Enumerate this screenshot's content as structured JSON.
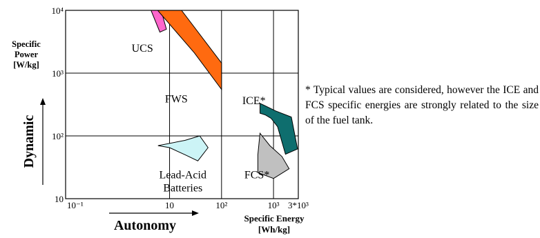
{
  "chart_data": {
    "type": "area",
    "x_scale": "log",
    "y_scale": "log",
    "xlim": [
      0.1,
      3000
    ],
    "ylim": [
      10,
      10000
    ],
    "grid": true,
    "x_ticks": [
      {
        "value": 0.1,
        "label": "10⁻¹"
      },
      {
        "value": 10,
        "label": "10"
      },
      {
        "value": 100,
        "label": "10²"
      },
      {
        "value": 1000,
        "label": "10³"
      },
      {
        "value": 3000,
        "label": "3*10³"
      }
    ],
    "y_ticks": [
      {
        "value": 10000,
        "label": "10⁴"
      },
      {
        "value": 1000,
        "label": "10³"
      },
      {
        "value": 100,
        "label": "10²"
      },
      {
        "value": 10,
        "label": "10"
      }
    ],
    "ylabel": [
      "Specific",
      "Power",
      "[W/kg]"
    ],
    "xlabel": [
      "Specific Energy",
      "[Wh/kg]"
    ],
    "y_arrow_label": "Dynamic",
    "x_arrow_label": "Autonomy",
    "series": [
      {
        "name": "UCS",
        "color": "#ff66cc",
        "polygon": [
          [
            4.4,
            10000
          ],
          [
            6.9,
            10000
          ],
          [
            8.7,
            5000
          ],
          [
            6.5,
            4500
          ]
        ],
        "label_pos": [
          3,
          2200
        ]
      },
      {
        "name": "FWS",
        "color": "#ff6a10",
        "polygon": [
          [
            5.9,
            10000
          ],
          [
            17,
            10000
          ],
          [
            100,
            1450
          ],
          [
            100,
            550
          ],
          [
            30,
            2100
          ]
        ],
        "label_pos": [
          13.5,
          340
        ]
      },
      {
        "name": "ICE*",
        "color": "#0e6e6e",
        "polygon": [
          [
            550,
            330
          ],
          [
            700,
            300
          ],
          [
            1100,
            250
          ],
          [
            2200,
            200
          ],
          [
            2900,
            62
          ],
          [
            1700,
            51
          ],
          [
            1200,
            140
          ],
          [
            900,
            190
          ],
          [
            700,
            215
          ],
          [
            550,
            230
          ]
        ],
        "label_pos": [
          420,
          320
        ]
      },
      {
        "name": "FCS*",
        "color": "#c0c0c0",
        "polygon": [
          [
            550,
            110
          ],
          [
            850,
            70
          ],
          [
            1450,
            47
          ],
          [
            2000,
            30
          ],
          [
            1000,
            21
          ],
          [
            500,
            26
          ],
          [
            500,
            50
          ]
        ],
        "label_pos": [
          480,
          21
        ]
      },
      {
        "name": "Lead-Acid\nBatteries",
        "color": "#ccf4f6",
        "polygon": [
          [
            6,
            70
          ],
          [
            20,
            85
          ],
          [
            38,
            100
          ],
          [
            55,
            65
          ],
          [
            35,
            40
          ],
          [
            20,
            50
          ],
          [
            10,
            65
          ]
        ],
        "label_pos": [
          18,
          21
        ]
      }
    ]
  },
  "footnote": "* Typical values are considered, however the ICE and FCS specific energies are strongly related to the size of the fuel tank."
}
